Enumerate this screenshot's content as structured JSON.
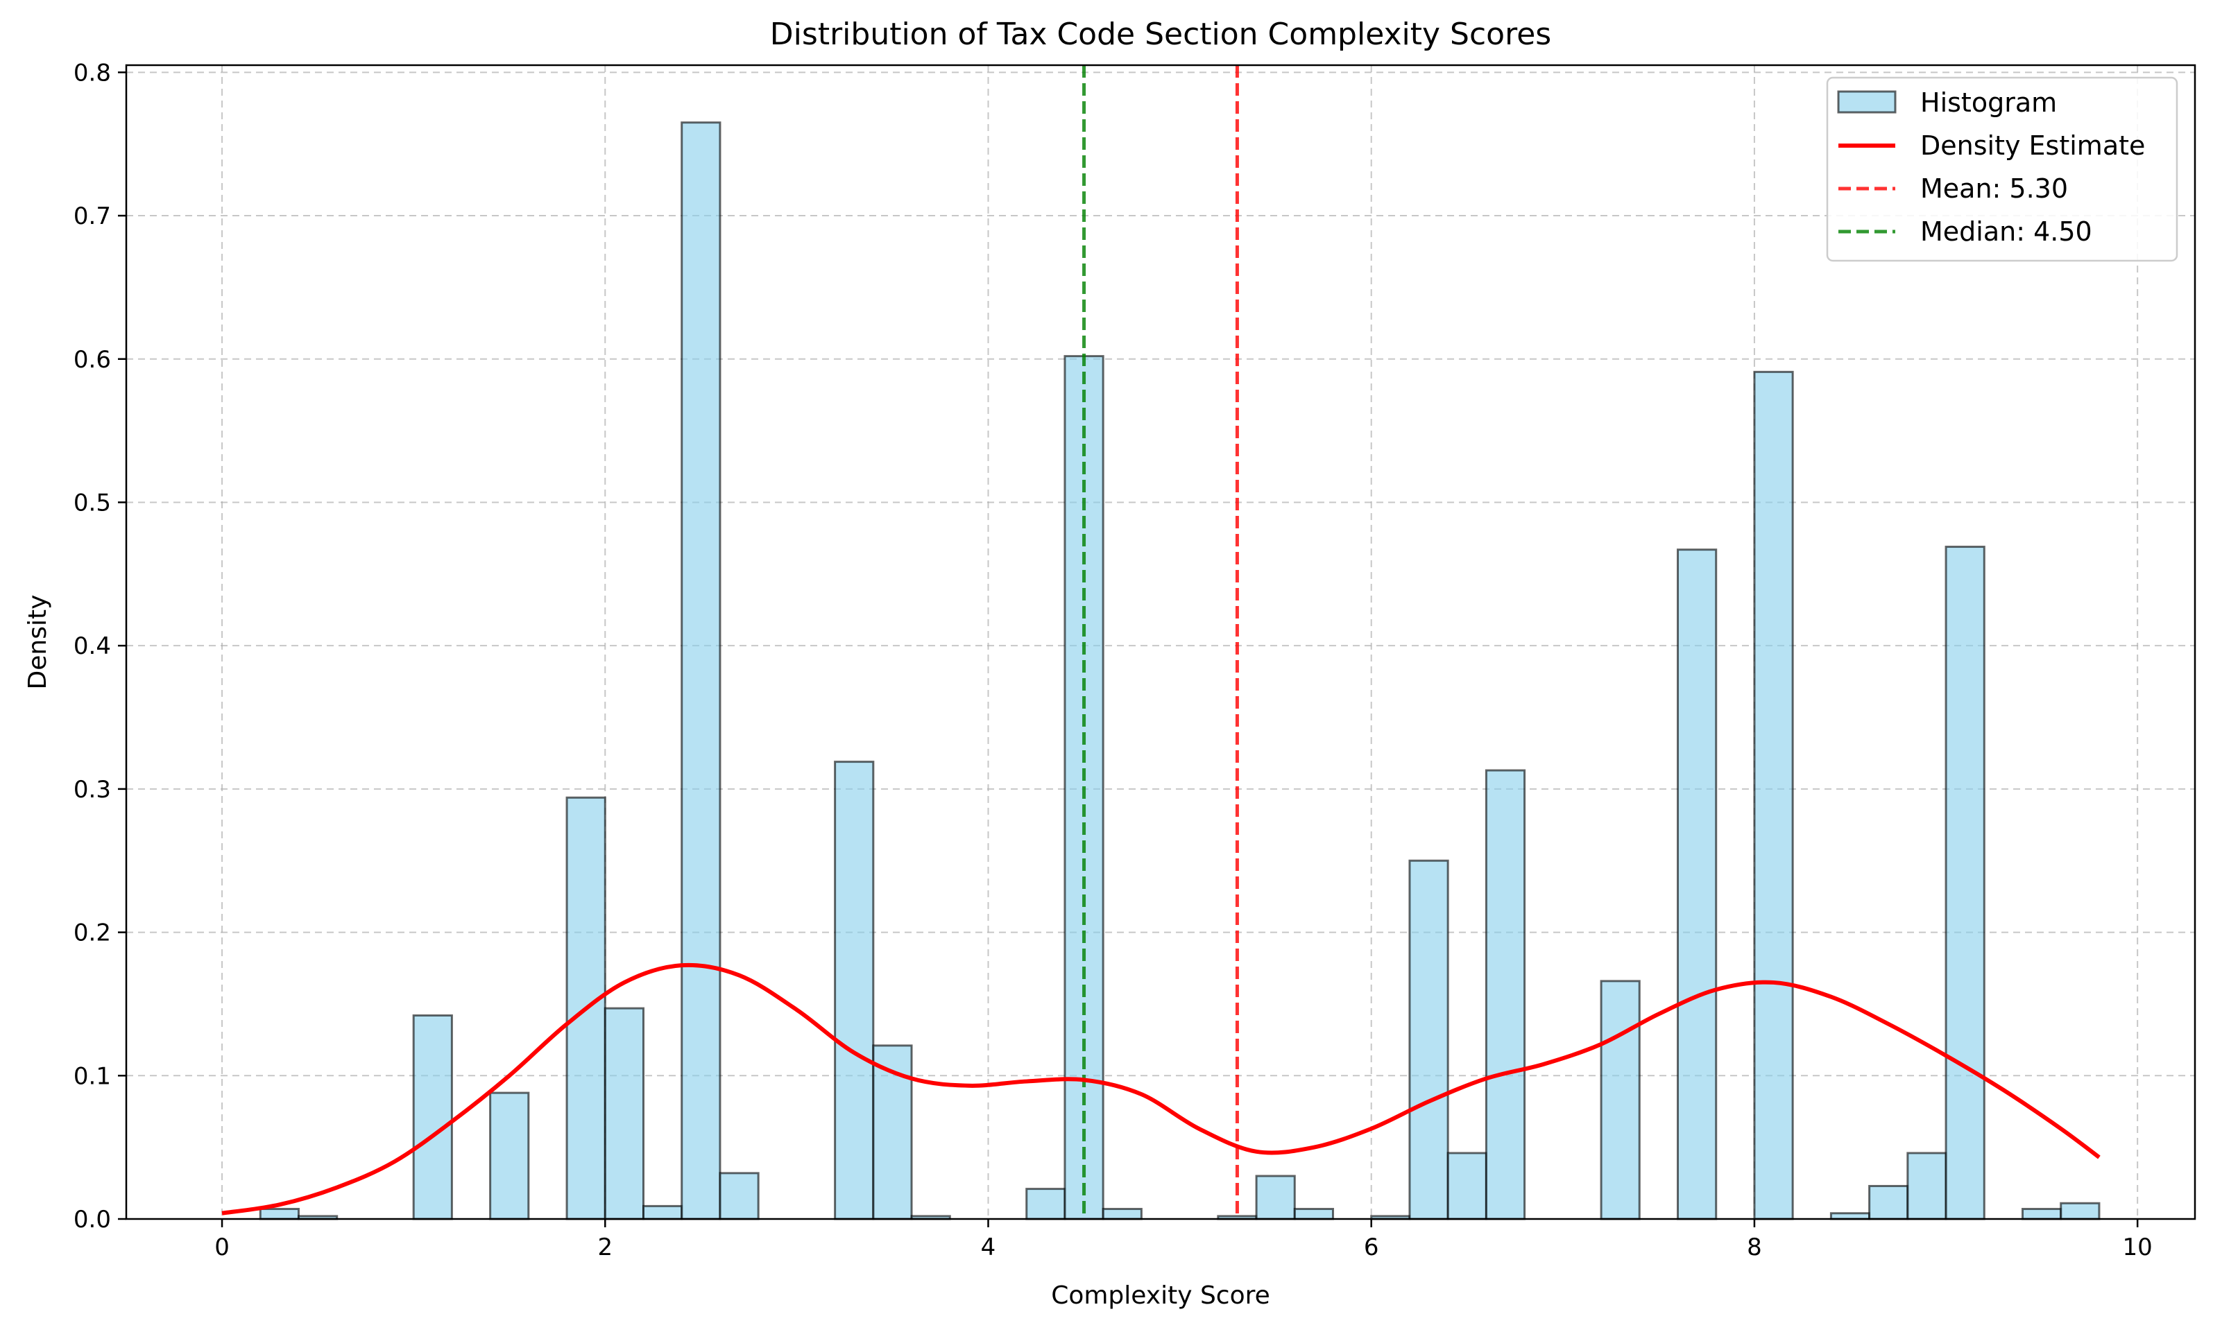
{
  "chart_data": {
    "type": "bar",
    "title": "Distribution of Tax Code Section Complexity Scores",
    "xlabel": "Complexity Score",
    "ylabel": "Density",
    "xlim": [
      -0.5,
      10.3
    ],
    "ylim": [
      0,
      0.805
    ],
    "xticks": [
      0,
      2,
      4,
      6,
      8,
      10
    ],
    "yticks": [
      0.0,
      0.1,
      0.2,
      0.3,
      0.4,
      0.5,
      0.6,
      0.7,
      0.8
    ],
    "grid": true,
    "legend_position": "top-right",
    "bin_width": 0.2,
    "histogram": {
      "name": "Histogram",
      "color": "#87CEEB",
      "edge_color": "#000000",
      "bins": [
        {
          "x0": 0.2,
          "x1": 0.4,
          "value": 0.007
        },
        {
          "x0": 0.4,
          "x1": 0.6,
          "value": 0.002
        },
        {
          "x0": 1.0,
          "x1": 1.2,
          "value": 0.142
        },
        {
          "x0": 1.4,
          "x1": 1.6,
          "value": 0.088
        },
        {
          "x0": 1.8,
          "x1": 2.0,
          "value": 0.294
        },
        {
          "x0": 2.0,
          "x1": 2.2,
          "value": 0.147
        },
        {
          "x0": 2.2,
          "x1": 2.4,
          "value": 0.009
        },
        {
          "x0": 2.4,
          "x1": 2.6,
          "value": 0.765
        },
        {
          "x0": 2.6,
          "x1": 2.8,
          "value": 0.032
        },
        {
          "x0": 3.2,
          "x1": 3.4,
          "value": 0.319
        },
        {
          "x0": 3.4,
          "x1": 3.6,
          "value": 0.121
        },
        {
          "x0": 3.6,
          "x1": 3.8,
          "value": 0.002
        },
        {
          "x0": 4.2,
          "x1": 4.4,
          "value": 0.021
        },
        {
          "x0": 4.4,
          "x1": 4.6,
          "value": 0.602
        },
        {
          "x0": 4.6,
          "x1": 4.8,
          "value": 0.007
        },
        {
          "x0": 5.2,
          "x1": 5.4,
          "value": 0.002
        },
        {
          "x0": 5.4,
          "x1": 5.6,
          "value": 0.03
        },
        {
          "x0": 5.6,
          "x1": 5.8,
          "value": 0.007
        },
        {
          "x0": 6.0,
          "x1": 6.2,
          "value": 0.002
        },
        {
          "x0": 6.2,
          "x1": 6.4,
          "value": 0.25
        },
        {
          "x0": 6.4,
          "x1": 6.6,
          "value": 0.046
        },
        {
          "x0": 6.6,
          "x1": 6.8,
          "value": 0.313
        },
        {
          "x0": 7.2,
          "x1": 7.4,
          "value": 0.166
        },
        {
          "x0": 7.6,
          "x1": 7.8,
          "value": 0.467
        },
        {
          "x0": 8.0,
          "x1": 8.2,
          "value": 0.591
        },
        {
          "x0": 8.4,
          "x1": 8.6,
          "value": 0.004
        },
        {
          "x0": 8.6,
          "x1": 8.8,
          "value": 0.023
        },
        {
          "x0": 8.8,
          "x1": 9.0,
          "value": 0.046
        },
        {
          "x0": 9.0,
          "x1": 9.2,
          "value": 0.469
        },
        {
          "x0": 9.4,
          "x1": 9.6,
          "value": 0.007
        },
        {
          "x0": 9.6,
          "x1": 9.8,
          "value": 0.011
        }
      ]
    },
    "density": {
      "name": "Density Estimate",
      "color": "#FF0000",
      "x": [
        0.0,
        0.3,
        0.6,
        0.9,
        1.2,
        1.5,
        1.8,
        2.1,
        2.4,
        2.7,
        3.0,
        3.3,
        3.6,
        3.9,
        4.2,
        4.5,
        4.8,
        5.1,
        5.4,
        5.7,
        6.0,
        6.3,
        6.6,
        6.9,
        7.2,
        7.5,
        7.8,
        8.1,
        8.4,
        8.7,
        9.0,
        9.3,
        9.6,
        9.8
      ],
      "y": [
        0.004,
        0.01,
        0.022,
        0.04,
        0.068,
        0.1,
        0.136,
        0.165,
        0.177,
        0.17,
        0.146,
        0.116,
        0.098,
        0.093,
        0.096,
        0.097,
        0.087,
        0.063,
        0.047,
        0.05,
        0.063,
        0.082,
        0.098,
        0.108,
        0.122,
        0.143,
        0.16,
        0.165,
        0.155,
        0.136,
        0.114,
        0.09,
        0.063,
        0.043
      ]
    },
    "reference_lines": [
      {
        "name": "Mean: 5.30",
        "value": 5.3,
        "color": "#FF0000",
        "style": "dashed"
      },
      {
        "name": "Median: 4.50",
        "value": 4.5,
        "color": "#008000",
        "style": "dashed"
      }
    ]
  }
}
